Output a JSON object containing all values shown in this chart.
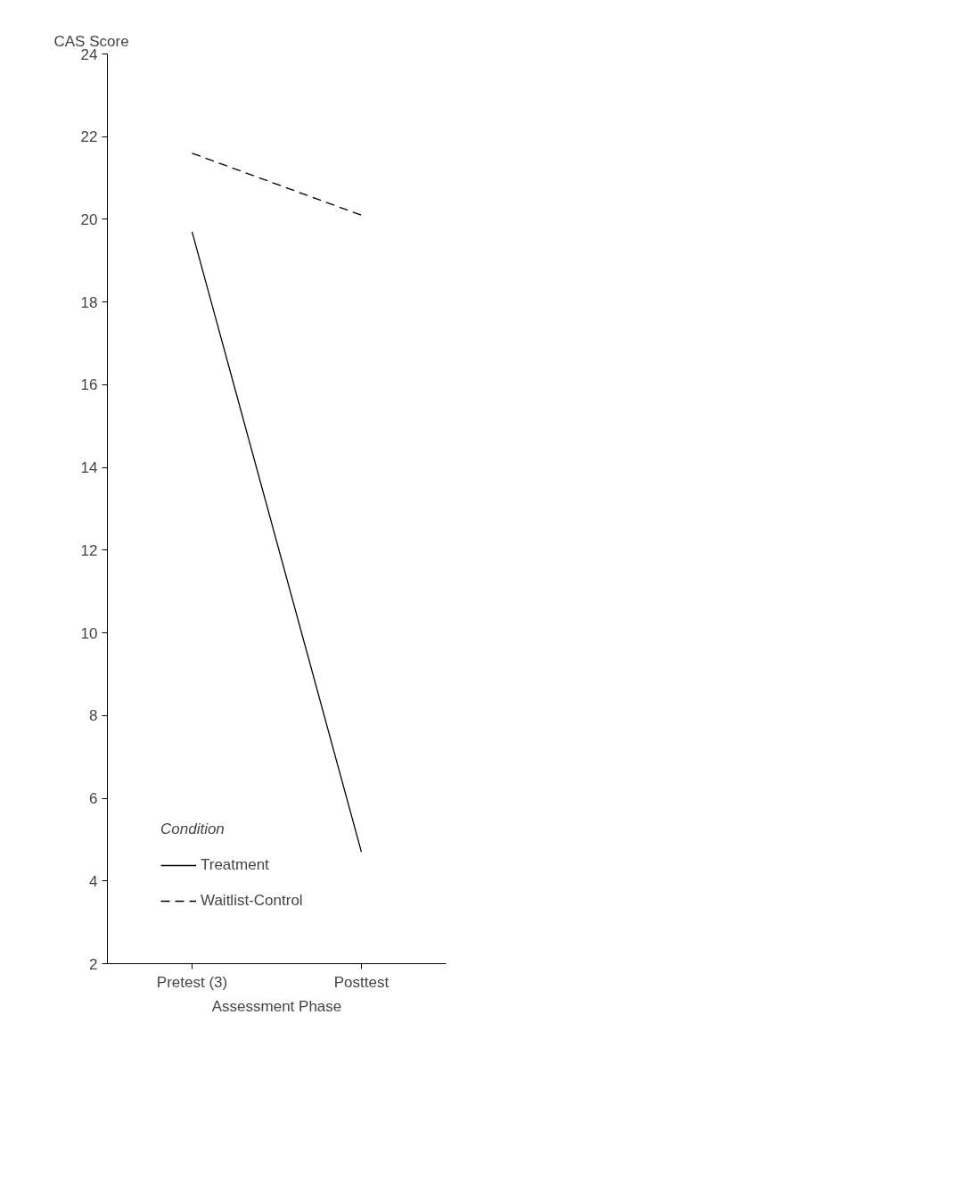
{
  "chart_data": {
    "type": "line",
    "xlabel": "Assessment Phase",
    "ylabel": "CAS Score",
    "legend_title": "Condition",
    "categories": [
      "Pretest (3)",
      "Posttest"
    ],
    "series": [
      {
        "name": "Treatment",
        "color": "#000000",
        "values": [
          19.7,
          4.7
        ],
        "line_style": "solid"
      },
      {
        "name": "Waitlist-Control",
        "color": "#000000",
        "values": [
          21.6,
          20.1
        ],
        "line_style": "dashed"
      }
    ],
    "ylim": [
      2,
      24
    ],
    "yticks": [
      2,
      4,
      6,
      8,
      10,
      12,
      14,
      16,
      18,
      20,
      22,
      24
    ],
    "grid": false,
    "legend": "bottom left",
    "marker": "none"
  }
}
